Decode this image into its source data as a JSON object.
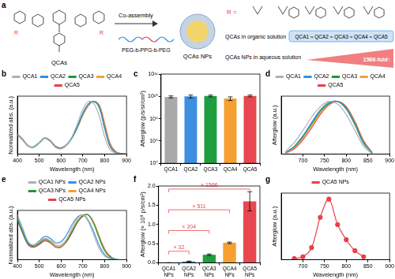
{
  "schematic": {
    "label": "a",
    "step": "Co-assembly",
    "molecule": "QCAs",
    "substituent": "R",
    "polymer": "PEG-b-PPG-b-PEG",
    "nanoparticle": "QCAs NPs",
    "r_label": "R =",
    "organic_caption": "QCAs in organic solution",
    "organic_relation": "QCA1 ≈ QCA2 ≈ QCA3 ≈ QCA4 ≈ QCA5",
    "aqueous_caption": "QCAs NPs in aqueous solution",
    "fold": "1566-fold↑"
  },
  "chart_data": [
    {
      "panel": "b",
      "type": "line",
      "xlabel": "Wavelength (nm)",
      "ylabel": "Normalized abs. (a.u.)",
      "x": [
        400,
        425,
        450,
        475,
        500,
        525,
        550,
        575,
        600,
        625,
        650,
        675,
        700,
        725,
        750,
        775,
        800,
        825,
        850,
        875,
        900
      ],
      "series": [
        {
          "name": "QCA1",
          "color": "#b0b0b0",
          "values": [
            0.36,
            0.26,
            0.15,
            0.13,
            0.22,
            0.3,
            0.24,
            0.13,
            0.1,
            0.17,
            0.33,
            0.58,
            0.85,
            1.0,
            0.96,
            0.72,
            0.33,
            0.08,
            0.02,
            0.0,
            0.0
          ]
        },
        {
          "name": "QCA2",
          "color": "#2f8fe8",
          "values": [
            0.37,
            0.27,
            0.15,
            0.13,
            0.21,
            0.3,
            0.25,
            0.14,
            0.11,
            0.17,
            0.31,
            0.53,
            0.78,
            0.95,
            1.0,
            0.88,
            0.48,
            0.14,
            0.03,
            0.01,
            0.0
          ]
        },
        {
          "name": "QCA3",
          "color": "#1a9a3a",
          "values": [
            0.37,
            0.27,
            0.15,
            0.14,
            0.22,
            0.3,
            0.25,
            0.14,
            0.11,
            0.17,
            0.31,
            0.52,
            0.77,
            0.95,
            1.0,
            0.89,
            0.5,
            0.15,
            0.03,
            0.01,
            0.0
          ]
        },
        {
          "name": "QCA4",
          "color": "#f5a030",
          "values": [
            0.38,
            0.28,
            0.16,
            0.14,
            0.22,
            0.31,
            0.26,
            0.15,
            0.12,
            0.18,
            0.31,
            0.51,
            0.75,
            0.93,
            1.0,
            0.91,
            0.55,
            0.18,
            0.04,
            0.01,
            0.0
          ]
        },
        {
          "name": "QCA5",
          "color": "#e8404a",
          "values": [
            0.38,
            0.28,
            0.16,
            0.14,
            0.22,
            0.31,
            0.26,
            0.15,
            0.12,
            0.18,
            0.31,
            0.5,
            0.74,
            0.92,
            1.0,
            0.93,
            0.58,
            0.2,
            0.05,
            0.01,
            0.0
          ]
        }
      ],
      "xlim": [
        400,
        900
      ],
      "xticks": [
        400,
        500,
        600,
        700,
        800,
        900
      ],
      "ylim": [
        0,
        1.1
      ],
      "tick_labels": "x",
      "legend": "top",
      "grid": false
    },
    {
      "panel": "c",
      "type": "bar",
      "ylabel": "Afterglow (p/s/sr/cm²)",
      "categories": [
        "QCA1",
        "QCA2",
        "QCA3",
        "QCA4",
        "QCA5"
      ],
      "values": [
        9500000000,
        10000000000,
        10500000000,
        8000000000,
        10500000000
      ],
      "errors": [
        1000000000,
        1500000000,
        1000000000,
        1500000000,
        1000000000
      ],
      "colors": [
        "#a9a9a9",
        "#3d8fe0",
        "#1f9e3f",
        "#f5a030",
        "#e8474f"
      ],
      "log": "y",
      "ylim": [
        10000000,
        100000000000
      ],
      "yticks": [
        {
          "value": 10000000,
          "label": "10⁷"
        },
        {
          "value": 100000000,
          "label": "10⁸"
        },
        {
          "value": 1000000000,
          "label": "10⁹"
        },
        {
          "value": 10000000000,
          "label": "10¹⁰"
        },
        {
          "value": 100000000000,
          "label": "10¹¹"
        }
      ],
      "grid": false
    },
    {
      "panel": "d",
      "type": "line",
      "xlabel": "Wavelength (nm)",
      "ylabel": "Afterglow (a.u.)",
      "x": [
        660,
        680,
        700,
        720,
        740,
        760,
        780,
        800,
        820,
        840,
        860
      ],
      "series": [
        {
          "name": "QCA1",
          "color": "#b0b0b0",
          "values": [
            0.05,
            0.22,
            0.45,
            0.7,
            0.9,
            1.0,
            0.95,
            0.75,
            0.45,
            0.15,
            0.0
          ]
        },
        {
          "name": "QCA2",
          "color": "#2f8fe8",
          "values": [
            0.03,
            0.15,
            0.35,
            0.6,
            0.84,
            0.98,
            1.0,
            0.85,
            0.55,
            0.2,
            0.02
          ]
        },
        {
          "name": "QCA3",
          "color": "#1a9a3a",
          "values": [
            0.03,
            0.14,
            0.33,
            0.57,
            0.81,
            0.96,
            1.0,
            0.87,
            0.58,
            0.22,
            0.02
          ]
        },
        {
          "name": "QCA4",
          "color": "#f5a030",
          "values": [
            0.02,
            0.12,
            0.3,
            0.54,
            0.78,
            0.95,
            1.0,
            0.88,
            0.6,
            0.24,
            0.03
          ]
        },
        {
          "name": "QCA5",
          "color": "#e8404a",
          "values": [
            0.02,
            0.1,
            0.27,
            0.5,
            0.75,
            0.93,
            1.0,
            0.9,
            0.62,
            0.26,
            0.03
          ]
        }
      ],
      "xlim": [
        650,
        900
      ],
      "xticks": [
        700,
        750,
        800,
        850,
        900
      ],
      "ylim": [
        0,
        1.1
      ],
      "tick_labels": "x",
      "legend": "top",
      "grid": false
    },
    {
      "panel": "e",
      "type": "line",
      "xlabel": "Wavelength (nm)",
      "ylabel": "Normalized abs. (a.u.)",
      "x": [
        400,
        425,
        450,
        475,
        500,
        525,
        550,
        575,
        600,
        625,
        650,
        675,
        700,
        725,
        750,
        775,
        800,
        825,
        850,
        875,
        900
      ],
      "series": [
        {
          "name": "QCA1 NPs",
          "color": "#b0b0b0",
          "values": [
            1.0,
            0.7,
            0.4,
            0.33,
            0.4,
            0.48,
            0.42,
            0.3,
            0.3,
            0.45,
            0.7,
            0.92,
            1.0,
            0.85,
            0.55,
            0.25,
            0.08,
            0.02,
            0.0,
            0.0,
            0.0
          ]
        },
        {
          "name": "QCA2 NPs",
          "color": "#2f8fe8",
          "values": [
            0.95,
            0.65,
            0.38,
            0.33,
            0.42,
            0.52,
            0.48,
            0.38,
            0.4,
            0.55,
            0.78,
            0.95,
            1.0,
            0.88,
            0.62,
            0.32,
            0.12,
            0.03,
            0.0,
            0.0,
            0.0
          ]
        },
        {
          "name": "QCA3 NPs",
          "color": "#1a9a3a",
          "values": [
            0.9,
            0.6,
            0.35,
            0.3,
            0.36,
            0.45,
            0.4,
            0.3,
            0.3,
            0.42,
            0.62,
            0.85,
            0.98,
            1.0,
            0.8,
            0.48,
            0.2,
            0.06,
            0.01,
            0.0,
            0.0
          ]
        },
        {
          "name": "QCA4 NPs",
          "color": "#f5a030",
          "values": [
            0.92,
            0.62,
            0.36,
            0.31,
            0.38,
            0.47,
            0.43,
            0.33,
            0.33,
            0.45,
            0.65,
            0.87,
            0.99,
            1.0,
            0.82,
            0.5,
            0.22,
            0.07,
            0.01,
            0.0,
            0.0
          ]
        },
        {
          "name": "QCA5 NPs",
          "color": "#e8404a",
          "values": [
            0.88,
            0.58,
            0.33,
            0.28,
            0.34,
            0.42,
            0.38,
            0.28,
            0.28,
            0.4,
            0.6,
            0.83,
            0.97,
            1.0,
            0.83,
            0.52,
            0.24,
            0.08,
            0.01,
            0.0,
            0.0
          ]
        }
      ],
      "xlim": [
        400,
        900
      ],
      "xticks": [
        400,
        500,
        600,
        700,
        800,
        900
      ],
      "ylim": [
        0,
        1.1
      ],
      "tick_labels": "x",
      "legend": "top",
      "grid": false
    },
    {
      "panel": "f",
      "type": "bar",
      "ylabel": "Afterglow (× 10⁸ p/s/cm²)",
      "categories": [
        "QCA1 NPs",
        "QCA2 NPs",
        "QCA3 NPs",
        "QCA4 NPs",
        "QCA5 NPs"
      ],
      "values": [
        0.001,
        0.033,
        0.21,
        0.52,
        1.6
      ],
      "errors": [
        0.0005,
        0.01,
        0.02,
        0.02,
        0.25
      ],
      "colors": [
        "#a9a9a9",
        "#3d8fe0",
        "#1f9e3f",
        "#f5a030",
        "#e8474f"
      ],
      "ylim": [
        0,
        2.0
      ],
      "yticks": [
        {
          "value": 0,
          "label": "0.0"
        },
        0.5,
        {
          "value": 1,
          "label": "1.0"
        },
        1.5,
        {
          "value": 2,
          "label": "2.0"
        }
      ],
      "comparisons": [
        {
          "from": "QCA1 NPs",
          "to": "QCA2 NPs",
          "label": "× 32"
        },
        {
          "from": "QCA1 NPs",
          "to": "QCA3 NPs",
          "label": "× 204"
        },
        {
          "from": "QCA1 NPs",
          "to": "QCA4 NPs",
          "label": "× 511"
        },
        {
          "from": "QCA1 NPs",
          "to": "QCA5 NPs",
          "label": "× 1566"
        }
      ],
      "grid": false
    },
    {
      "panel": "g",
      "type": "line",
      "xlabel": "Wavelength (nm)",
      "ylabel": "Afterglow (a.u.)",
      "x": [
        680,
        700,
        720,
        740,
        760,
        780,
        800,
        820,
        840
      ],
      "series": [
        {
          "name": "QCA5 NPs",
          "color": "#e8404a",
          "marker": "circle",
          "line_style": "solid",
          "values": [
            0.02,
            0.05,
            0.2,
            0.7,
            1.0,
            0.58,
            0.33,
            0.15,
            0.05
          ]
        }
      ],
      "xlim": [
        650,
        900
      ],
      "xticks": [
        700,
        750,
        800,
        850,
        900
      ],
      "ylim": [
        0,
        1.1
      ],
      "tick_labels": "x",
      "legend": "top",
      "grid": false
    }
  ]
}
